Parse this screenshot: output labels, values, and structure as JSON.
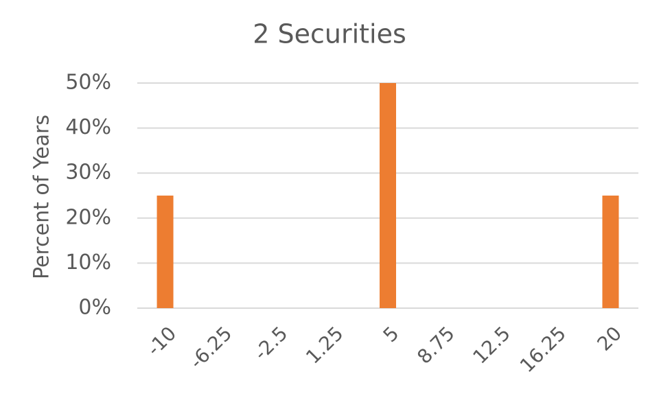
{
  "chart_data": {
    "type": "bar",
    "title": "2 Securities",
    "y_label": "Percent of Years",
    "categories": [
      "-10",
      "-6.25",
      "-2.5",
      "1.25",
      "5",
      "8.75",
      "12.5",
      "16.25",
      "20"
    ],
    "values": [
      25,
      0,
      0,
      0,
      50,
      0,
      0,
      0,
      25
    ],
    "color": "#ed7d31",
    "ylim": [
      0,
      50
    ],
    "yticks": [
      {
        "value": 0,
        "label": "0%"
      },
      {
        "value": 10,
        "label": "10%"
      },
      {
        "value": 20,
        "label": "20%"
      },
      {
        "value": 30,
        "label": "30%"
      },
      {
        "value": 40,
        "label": "40%"
      },
      {
        "value": 50,
        "label": "50%"
      }
    ],
    "grid": true
  }
}
